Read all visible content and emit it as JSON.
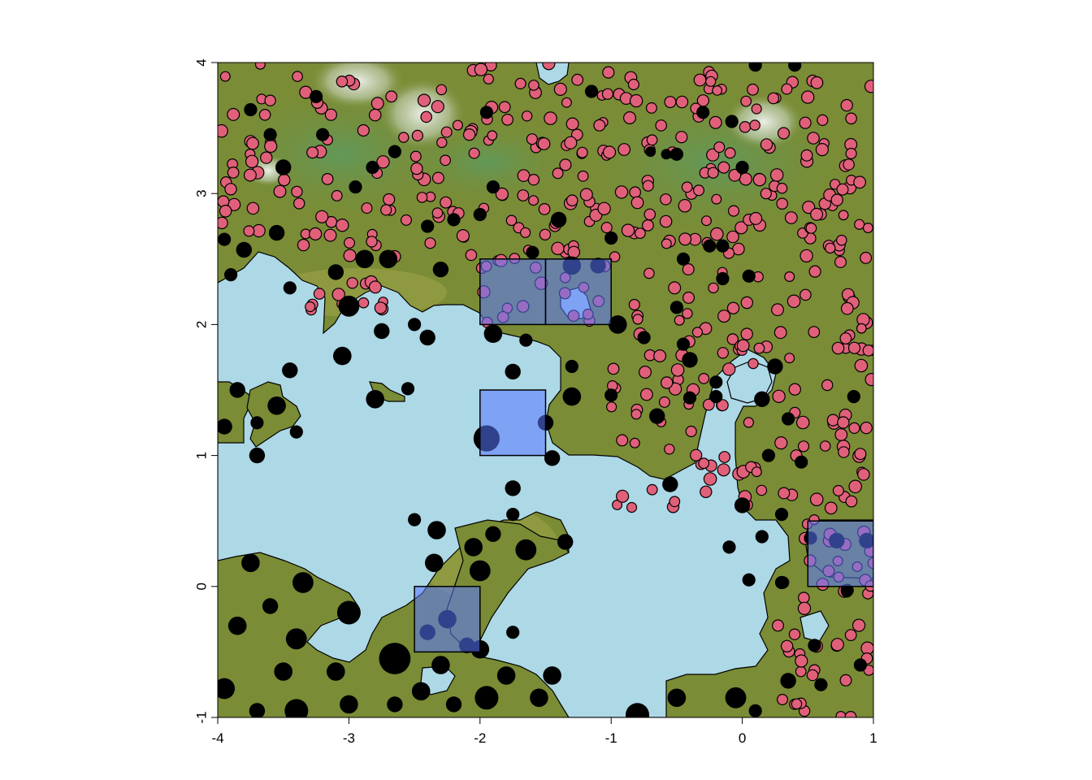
{
  "chart_data": {
    "type": "scatter",
    "title": "",
    "xlabel": "",
    "ylabel": "",
    "xlim": [
      -4,
      1
    ],
    "ylim": [
      -1,
      4
    ],
    "x_ticks": [
      "-4",
      "-3",
      "-2",
      "-1",
      "0",
      "1"
    ],
    "y_ticks": [
      "-1",
      "0",
      "1",
      "2",
      "3",
      "4"
    ],
    "grid": false,
    "legend": "none",
    "colors": {
      "water": "#add8e6",
      "land": "#7a8c35",
      "land_light": "#9aa04a",
      "snow": "#e6ece6",
      "box_fill": "#5a78ff",
      "box_edge": "#000000",
      "point_red": "#e0607a",
      "point_black": "#000000"
    },
    "boxes": [
      {
        "x": [
          -2.0,
          -1.5
        ],
        "y": [
          2.0,
          2.5
        ]
      },
      {
        "x": [
          -1.5,
          -1.0
        ],
        "y": [
          2.0,
          2.5
        ]
      },
      {
        "x": [
          -2.0,
          -1.5
        ],
        "y": [
          1.0,
          1.5
        ]
      },
      {
        "x": [
          -2.5,
          -2.0
        ],
        "y": [
          -0.5,
          0.0
        ]
      },
      {
        "x": [
          0.5,
          1.0
        ],
        "y": [
          0.0,
          0.5
        ]
      }
    ],
    "black_points": [
      [
        -3.4,
        -0.95,
        0.09
      ],
      [
        -3.7,
        -0.95,
        0.06
      ],
      [
        -3.0,
        -0.9,
        0.07
      ],
      [
        -2.65,
        -0.9,
        0.06
      ],
      [
        -2.45,
        -0.8,
        0.07
      ],
      [
        -2.2,
        -0.9,
        0.06
      ],
      [
        -1.95,
        -0.85,
        0.09
      ],
      [
        -1.55,
        -0.85,
        0.07
      ],
      [
        -0.8,
        -0.98,
        0.09
      ],
      [
        -0.5,
        -0.85,
        0.07
      ],
      [
        -0.05,
        -0.85,
        0.08
      ],
      [
        0.1,
        -0.95,
        0.05
      ],
      [
        0.35,
        -0.72,
        0.06
      ],
      [
        -3.95,
        -0.78,
        0.08
      ],
      [
        -3.5,
        -0.65,
        0.07
      ],
      [
        -3.1,
        -0.65,
        0.07
      ],
      [
        -2.65,
        -0.55,
        0.12
      ],
      [
        -2.3,
        -0.6,
        0.07
      ],
      [
        -2.0,
        -0.48,
        0.07
      ],
      [
        -1.8,
        -0.68,
        0.07
      ],
      [
        -1.45,
        -0.68,
        0.07
      ],
      [
        -3.85,
        -0.3,
        0.07
      ],
      [
        -3.4,
        -0.4,
        0.08
      ],
      [
        -3.6,
        -0.15,
        0.06
      ],
      [
        -3.0,
        -0.2,
        0.09
      ],
      [
        -2.25,
        -0.25,
        0.07
      ],
      [
        -2.1,
        -0.45,
        0.06
      ],
      [
        -1.75,
        -0.35,
        0.05
      ],
      [
        -2.4,
        -0.35,
        0.06
      ],
      [
        -3.75,
        0.18,
        0.07
      ],
      [
        -3.35,
        0.03,
        0.08
      ],
      [
        -2.0,
        0.12,
        0.08
      ],
      [
        -2.35,
        0.18,
        0.07
      ],
      [
        -2.05,
        0.3,
        0.07
      ],
      [
        -1.65,
        0.28,
        0.08
      ],
      [
        -1.9,
        0.4,
        0.06
      ],
      [
        -2.5,
        0.51,
        0.05
      ],
      [
        -2.33,
        0.43,
        0.07
      ],
      [
        -1.35,
        0.34,
        0.06
      ],
      [
        -1.75,
        0.55,
        0.05
      ],
      [
        -1.75,
        0.75,
        0.06
      ],
      [
        -1.45,
        0.98,
        0.06
      ],
      [
        -1.95,
        1.13,
        0.1
      ],
      [
        -3.7,
        1.0,
        0.06
      ],
      [
        -3.55,
        1.38,
        0.07
      ],
      [
        -3.7,
        1.25,
        0.05
      ],
      [
        -3.95,
        1.22,
        0.06
      ],
      [
        -3.4,
        1.18,
        0.05
      ],
      [
        -2.8,
        1.43,
        0.07
      ],
      [
        -2.55,
        1.51,
        0.05
      ],
      [
        -3.85,
        1.5,
        0.06
      ],
      [
        -3.45,
        1.65,
        0.06
      ],
      [
        -3.05,
        1.76,
        0.07
      ],
      [
        -2.75,
        1.95,
        0.06
      ],
      [
        -2.4,
        1.9,
        0.06
      ],
      [
        -1.9,
        1.93,
        0.07
      ],
      [
        -1.75,
        1.64,
        0.06
      ],
      [
        -1.5,
        1.25,
        0.06
      ],
      [
        -1.3,
        1.45,
        0.07
      ],
      [
        -1.65,
        1.88,
        0.05
      ],
      [
        -1.3,
        1.68,
        0.05
      ],
      [
        -1.0,
        1.46,
        0.05
      ],
      [
        -0.65,
        1.3,
        0.06
      ],
      [
        -0.4,
        1.44,
        0.05
      ],
      [
        -0.2,
        1.45,
        0.05
      ],
      [
        0.15,
        1.43,
        0.06
      ],
      [
        0.35,
        1.28,
        0.05
      ],
      [
        0.2,
        1.0,
        0.05
      ],
      [
        0.45,
        0.95,
        0.05
      ],
      [
        -0.55,
        0.78,
        0.06
      ],
      [
        0.0,
        0.62,
        0.06
      ],
      [
        0.3,
        0.55,
        0.05
      ],
      [
        0.15,
        0.38,
        0.05
      ],
      [
        -0.1,
        0.3,
        0.05
      ],
      [
        0.05,
        0.05,
        0.05
      ],
      [
        0.3,
        0.03,
        0.05
      ],
      [
        0.8,
        -0.03,
        0.05
      ],
      [
        0.55,
        -0.45,
        0.05
      ],
      [
        0.9,
        -0.6,
        0.05
      ],
      [
        0.6,
        -0.75,
        0.05
      ],
      [
        -3.95,
        2.65,
        0.05
      ],
      [
        -3.9,
        2.38,
        0.05
      ],
      [
        -3.8,
        2.57,
        0.06
      ],
      [
        -3.55,
        2.7,
        0.06
      ],
      [
        -3.45,
        2.28,
        0.05
      ],
      [
        -3.1,
        2.4,
        0.06
      ],
      [
        -3.0,
        2.14,
        0.08
      ],
      [
        -2.88,
        2.5,
        0.07
      ],
      [
        -2.7,
        2.5,
        0.07
      ],
      [
        -2.3,
        2.42,
        0.06
      ],
      [
        -2.5,
        2.0,
        0.05
      ],
      [
        -2.2,
        2.8,
        0.05
      ],
      [
        -2.0,
        2.84,
        0.05
      ],
      [
        -1.9,
        3.05,
        0.05
      ],
      [
        -1.6,
        2.55,
        0.05
      ],
      [
        -1.4,
        2.8,
        0.06
      ],
      [
        -1.3,
        2.45,
        0.07
      ],
      [
        -1.1,
        2.45,
        0.06
      ],
      [
        -1.0,
        2.66,
        0.05
      ],
      [
        -0.95,
        2.0,
        0.07
      ],
      [
        -0.75,
        1.9,
        0.05
      ],
      [
        -0.45,
        1.85,
        0.05
      ],
      [
        -0.4,
        1.73,
        0.06
      ],
      [
        -0.2,
        1.56,
        0.05
      ],
      [
        0.25,
        1.68,
        0.06
      ],
      [
        -0.5,
        2.13,
        0.05
      ],
      [
        -0.15,
        2.35,
        0.05
      ],
      [
        -0.45,
        2.5,
        0.05
      ],
      [
        -0.25,
        2.6,
        0.05
      ],
      [
        -3.6,
        3.45,
        0.05
      ],
      [
        -3.2,
        3.45,
        0.05
      ],
      [
        -3.5,
        3.2,
        0.06
      ],
      [
        -3.75,
        3.64,
        0.05
      ],
      [
        -3.25,
        3.74,
        0.05
      ],
      [
        -2.95,
        3.05,
        0.05
      ],
      [
        -2.65,
        3.32,
        0.05
      ],
      [
        -2.82,
        3.2,
        0.05
      ],
      [
        -2.4,
        2.75,
        0.05
      ],
      [
        -1.95,
        3.62,
        0.05
      ],
      [
        -1.15,
        3.78,
        0.05
      ],
      [
        -0.5,
        3.3,
        0.05
      ],
      [
        -0.3,
        3.62,
        0.05
      ],
      [
        -0.08,
        3.55,
        0.05
      ],
      [
        0.1,
        3.98,
        0.05
      ],
      [
        0.4,
        3.98,
        0.05
      ],
      [
        0.0,
        3.2,
        0.05
      ],
      [
        -0.58,
        3.3,
        0.04
      ],
      [
        -0.7,
        3.32,
        0.04
      ],
      [
        0.72,
        0.35,
        0.06
      ],
      [
        0.95,
        0.35,
        0.06
      ],
      [
        0.52,
        0.37,
        0.05
      ],
      [
        -0.15,
        2.6,
        0.05
      ],
      [
        0.05,
        2.37,
        0.05
      ],
      [
        0.85,
        1.45,
        0.05
      ]
    ],
    "red_points_spec": {
      "count": 520,
      "seed": 17,
      "radius": 0.042
    }
  }
}
